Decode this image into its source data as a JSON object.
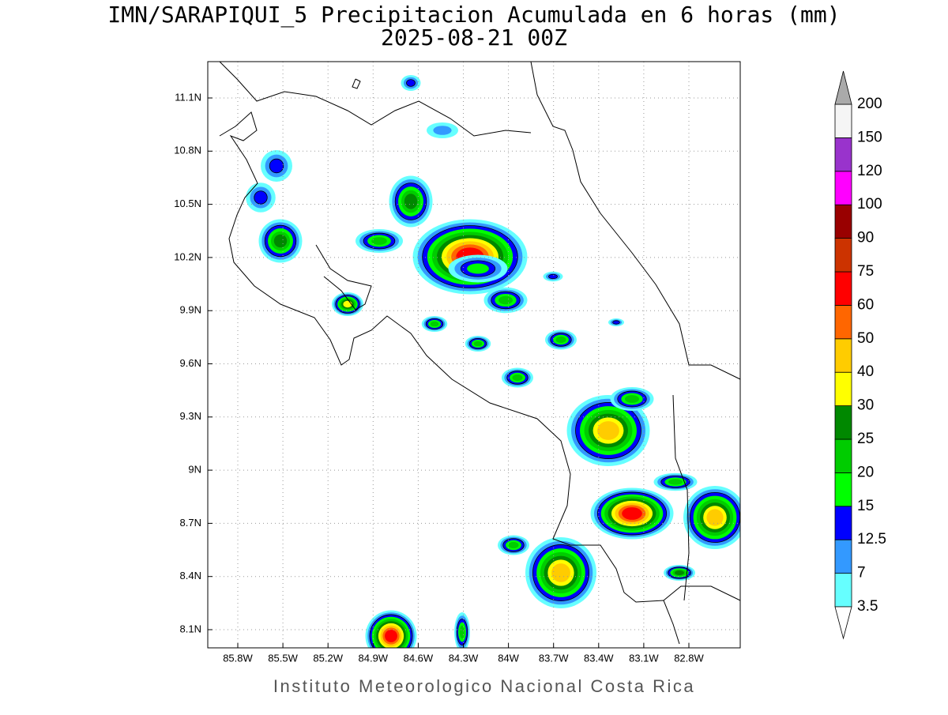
{
  "title": "IMN/SARAPIQUI_5 Precipitacion Acumulada en 6 horas (mm)",
  "subtitle": "2025-08-21 00Z",
  "map": {
    "lon_ticks": [
      "85.8W",
      "85.5W",
      "85.2W",
      "84.9W",
      "84.6W",
      "84.3W",
      "84W",
      "83.7W",
      "83.4W",
      "83.1W",
      "82.8W"
    ],
    "lat_ticks": [
      "11.1N",
      "10.8N",
      "10.5N",
      "10.2N",
      "9.9N",
      "9.6N",
      "9.3N",
      "9N",
      "8.7N",
      "8.4N",
      "8.1N"
    ]
  },
  "colorbar": {
    "levels": [
      3.5,
      7,
      12.5,
      15,
      20,
      25,
      30,
      40,
      50,
      60,
      75,
      90,
      100,
      120,
      150,
      200
    ],
    "colors": [
      "#66ffff",
      "#3399ff",
      "#0000ff",
      "#00ff00",
      "#00cc00",
      "#008800",
      "#ffff00",
      "#ffcc00",
      "#ff6600",
      "#ff0000",
      "#cc3300",
      "#990000",
      "#ff00ff",
      "#9933cc",
      "#f5f5f5"
    ],
    "under_color": "#ffffff",
    "over_color": "#aaaaaa"
  },
  "footer": "Instituto Meteorologico Nacional Costa Rica"
}
